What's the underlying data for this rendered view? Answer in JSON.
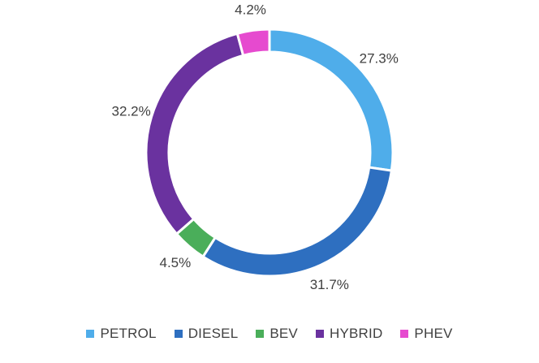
{
  "chart_data": {
    "type": "pie",
    "variant": "donut",
    "title": "",
    "categories": [
      "PETROL",
      "DIESEL",
      "BEV",
      "HYBRID",
      "PHEV"
    ],
    "values": [
      27.3,
      31.7,
      4.5,
      32.2,
      4.2
    ],
    "labels": [
      "27.3%",
      "31.7%",
      "4.5%",
      "32.2%",
      "4.2%"
    ],
    "colors": [
      "#4FADEA",
      "#2E6FC0",
      "#4AAE5A",
      "#6A329F",
      "#E64ACF"
    ],
    "legend_position": "bottom"
  }
}
